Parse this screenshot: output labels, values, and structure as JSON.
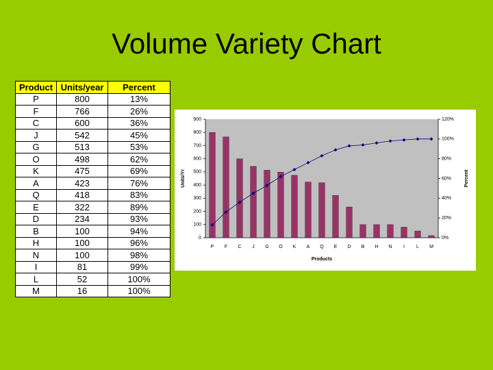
{
  "header": {
    "title": "Volume Variety Chart"
  },
  "table": {
    "columns": [
      "Product",
      "Units/year",
      "Percent"
    ],
    "rows": [
      [
        "P",
        "800",
        "13%"
      ],
      [
        "F",
        "766",
        "26%"
      ],
      [
        "C",
        "600",
        "36%"
      ],
      [
        "J",
        "542",
        "45%"
      ],
      [
        "G",
        "513",
        "53%"
      ],
      [
        "O",
        "498",
        "62%"
      ],
      [
        "K",
        "475",
        "69%"
      ],
      [
        "A",
        "423",
        "76%"
      ],
      [
        "Q",
        "418",
        "83%"
      ],
      [
        "E",
        "322",
        "89%"
      ],
      [
        "D",
        "234",
        "93%"
      ],
      [
        "B",
        "100",
        "94%"
      ],
      [
        "H",
        "100",
        "96%"
      ],
      [
        "N",
        "100",
        "98%"
      ],
      [
        "I",
        "81",
        "99%"
      ],
      [
        "L",
        "52",
        "100%"
      ],
      [
        "M",
        "16",
        "100%"
      ]
    ]
  },
  "chart_data": {
    "type": "pareto",
    "categories": [
      "P",
      "F",
      "C",
      "J",
      "G",
      "O",
      "K",
      "A",
      "Q",
      "E",
      "D",
      "B",
      "H",
      "N",
      "I",
      "L",
      "M"
    ],
    "series": [
      {
        "type": "bar",
        "color": "#993366",
        "values": [
          800,
          766,
          600,
          542,
          513,
          498,
          475,
          423,
          418,
          322,
          234,
          100,
          100,
          100,
          81,
          52,
          16
        ]
      },
      {
        "type": "line",
        "axis": "y2",
        "color": "#000080",
        "values": [
          13,
          26,
          36,
          45,
          53,
          62,
          69,
          76,
          83,
          89,
          93,
          94,
          96,
          98,
          99,
          100,
          100
        ]
      }
    ],
    "ylim": [
      0,
      900
    ],
    "yticks": [
      0,
      100,
      200,
      300,
      400,
      500,
      600,
      700,
      800,
      900
    ],
    "y2lim": [
      0,
      120
    ],
    "y2ticks": [
      {
        "value": 0,
        "label": "0%"
      },
      {
        "value": 20,
        "label": "20%"
      },
      {
        "value": 40,
        "label": "40%"
      },
      {
        "value": 60,
        "label": "60%"
      },
      {
        "value": 80,
        "label": "80%"
      },
      {
        "value": 100,
        "label": "100%"
      },
      {
        "value": 120,
        "label": "120%"
      }
    ],
    "xlabel": "Products",
    "ylabel": "Units/Yr",
    "y2label": "Percent",
    "grid": false
  }
}
